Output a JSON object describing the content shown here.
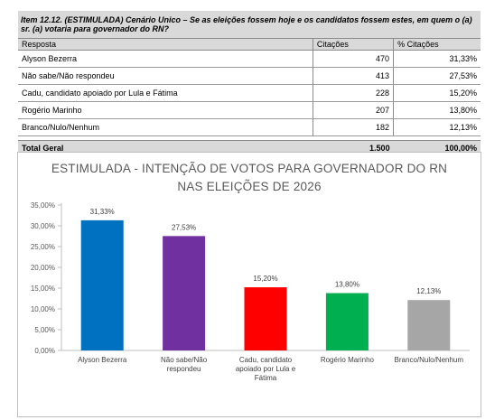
{
  "table": {
    "title": "Item 12.12. (ESTIMULADA) Cenário Unico – Se as eleições fossem hoje e os candidatos fossem estes, em quem o (a) sr. (a) votaria para governador do RN?",
    "headers": [
      "Resposta",
      "Citações",
      "% Citações"
    ],
    "rows": [
      {
        "label": "Alyson Bezerra",
        "count": "470",
        "pct": "31,33%"
      },
      {
        "label": "Não sabe/Não respondeu",
        "count": "413",
        "pct": "27,53%"
      },
      {
        "label": "Cadu, candidato apoiado por Lula e Fátima",
        "count": "228",
        "pct": "15,20%"
      },
      {
        "label": "Rogério Marinho",
        "count": "207",
        "pct": "13,80%"
      },
      {
        "label": "Branco/Nulo/Nenhum",
        "count": "182",
        "pct": "12,13%"
      }
    ],
    "total": {
      "label": "Total Geral",
      "count": "1.500",
      "pct": "100,00%"
    }
  },
  "chart_data": {
    "type": "bar",
    "title_lines": [
      "ESTIMULADA - INTENÇÃO DE VOTOS PARA GOVERNADOR DO RN",
      "NAS ELEIÇÕES DE 2026"
    ],
    "categories": [
      [
        "Alyson Bezerra"
      ],
      [
        "Não sabe/Não",
        "respondeu"
      ],
      [
        "Cadu, candidato",
        "apoiado por Lula e",
        "Fátima"
      ],
      [
        "Rogério Marinho"
      ],
      [
        "Branco/Nulo/Nenhum"
      ]
    ],
    "values": [
      31.33,
      27.53,
      15.2,
      13.8,
      12.13
    ],
    "data_labels": [
      "31,33%",
      "27,53%",
      "15,20%",
      "13,80%",
      "12,13%"
    ],
    "colors": [
      "#0070c0",
      "#7030a0",
      "#ff0000",
      "#00b050",
      "#a6a6a6"
    ],
    "ylim": [
      0,
      35
    ],
    "yticks": [
      0,
      5,
      10,
      15,
      20,
      25,
      30,
      35
    ],
    "ytick_labels": [
      "0,00%",
      "5,00%",
      "10,00%",
      "15,00%",
      "20,00%",
      "25,00%",
      "30,00%",
      "35,00%"
    ],
    "grid": false,
    "legend": "none"
  }
}
